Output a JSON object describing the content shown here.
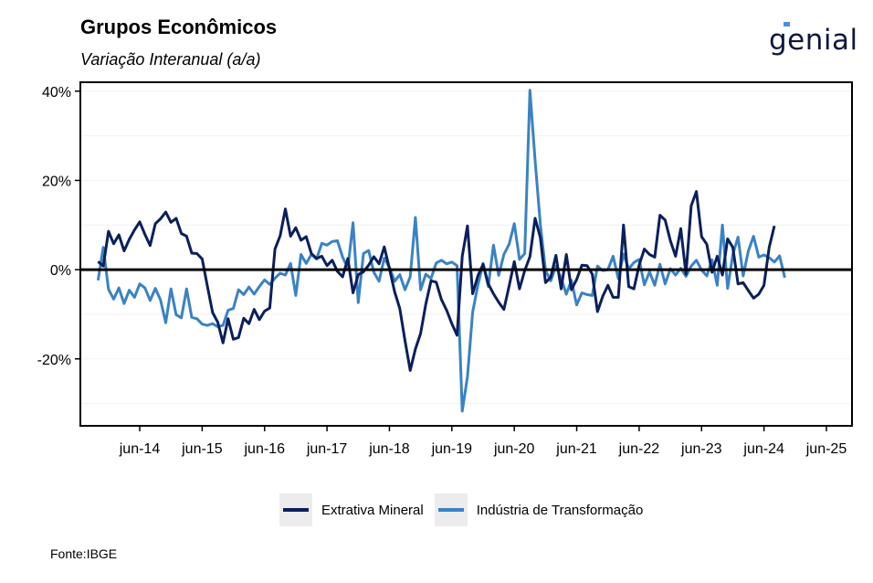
{
  "header": {
    "title": "Grupos Econômicos",
    "subtitle": "Variação Interanual (a/a)"
  },
  "logo": {
    "text": "genial"
  },
  "source": "Fonte:IBGE",
  "chart_data": {
    "type": "line",
    "title": "Grupos Econômicos",
    "subtitle": "Variação Interanual (a/a)",
    "y_unit": "%",
    "ylim": [
      -35,
      42
    ],
    "y_ticks": [
      40,
      20,
      0,
      -20
    ],
    "y_tick_labels": [
      "40%",
      "20%",
      "0%",
      "-20%"
    ],
    "x_tick_labels": [
      "jun-14",
      "jun-15",
      "jun-16",
      "jun-17",
      "jun-18",
      "jun-19",
      "jun-20",
      "jun-21",
      "jun-22",
      "jun-23",
      "jun-24",
      "jun-25"
    ],
    "x_start": "2013-10",
    "x_end": "2024-10",
    "grid": true,
    "zero_line": true,
    "legend_position": "bottom",
    "series": [
      {
        "name": "Extrativa Mineral",
        "color": "#0b1f5c",
        "values": [
          1.8,
          0.8,
          8.6,
          5.8,
          7.8,
          4.2,
          6.8,
          8.9,
          10.7,
          7.9,
          5.4,
          10.3,
          11.4,
          12.9,
          10.6,
          11.5,
          8.1,
          7.5,
          3.7,
          3.6,
          2.4,
          -3.7,
          -9.6,
          -11.8,
          -16.4,
          -11.0,
          -15.6,
          -15.2,
          -10.9,
          -12.1,
          -8.9,
          -11.2,
          -9.3,
          -8.6,
          4.6,
          7.6,
          13.6,
          7.5,
          9.4,
          6.6,
          7.4,
          3.6,
          2.5,
          3.0,
          0.9,
          2.1,
          -0.4,
          -1.6,
          2.5,
          -5.2,
          -1.1,
          -0.5,
          1.0,
          2.9,
          1.3,
          5.1,
          0.2,
          -5.0,
          -8.7,
          -15.9,
          -22.6,
          -17.8,
          -14.3,
          -7.7,
          -2.5,
          -2.8,
          -6.7,
          -9.1,
          -12.1,
          -14.7,
          3.0,
          9.8,
          -5.4,
          -1.4,
          1.2,
          -3.2,
          -5.4,
          -7.3,
          -8.9,
          -3.7,
          1.8,
          -4.3,
          -0.2,
          2.9,
          11.5,
          7.2,
          -2.9,
          -1.7,
          3.2,
          -4.3,
          3.4,
          -4.5,
          -2.2,
          1.0,
          0.9,
          -1.0,
          -9.4,
          -6.0,
          -3.5,
          -6.2,
          -6.2,
          10.0,
          -3.8,
          -4.3,
          1.0,
          4.6,
          3.4,
          2.8,
          12.2,
          11.1,
          6.5,
          3.0,
          9.2,
          -1.0,
          14.3,
          17.5,
          7.4,
          5.7,
          -0.6,
          3.0,
          -1.2,
          6.9,
          5.0,
          -3.2,
          -2.9,
          -4.7,
          -6.4,
          -5.5,
          -3.5,
          5.0,
          9.8
        ]
      },
      {
        "name": "Indústria de Transformação",
        "color": "#3a82c4",
        "values": [
          -2.4,
          5.0,
          -4.4,
          -6.6,
          -4.1,
          -7.6,
          -4.6,
          -6.2,
          -3.2,
          -4.1,
          -6.9,
          -4.2,
          -6.8,
          -11.9,
          -4.3,
          -10.1,
          -10.8,
          -4.3,
          -10.7,
          -11.0,
          -12.2,
          -12.5,
          -12.1,
          -12.8,
          -12.5,
          -9.1,
          -8.7,
          -4.5,
          -5.6,
          -3.9,
          -5.5,
          -3.8,
          -2.3,
          -3.3,
          -1.9,
          -0.8,
          -1.2,
          1.4,
          -5.8,
          3.4,
          1.4,
          3.4,
          2.4,
          5.9,
          5.5,
          6.3,
          6.5,
          2.8,
          0.3,
          10.5,
          -7.4,
          3.6,
          4.3,
          -0.6,
          -2.6,
          2.6,
          0.5,
          -2.6,
          -1.1,
          -4.5,
          -1.6,
          11.7,
          -4.5,
          -1.0,
          -2.0,
          1.5,
          2.1,
          1.3,
          1.7,
          0.9,
          -31.7,
          -24.0,
          -9.5,
          -3.5,
          1.4,
          -3.8,
          5.5,
          -1.3,
          3.4,
          5.7,
          10.3,
          2.3,
          3.6,
          40.2,
          24.4,
          10.2,
          -0.2,
          -2.5,
          0.8,
          -2.0,
          -5.5,
          -2.4,
          -7.9,
          -5.2,
          -5.6,
          -5.8,
          0.8,
          -0.2,
          0.0,
          3.0,
          -2.0,
          3.5,
          0.2,
          1.6,
          2.3,
          -3.4,
          -0.5,
          -3.5,
          1.2,
          -3.2,
          0.2,
          -1.2,
          0.3,
          -1.5,
          0.8,
          2.1,
          -0.1,
          -1.4,
          2.2,
          -3.5,
          10.0,
          -4.2,
          3.4,
          7.3,
          -1.4,
          4.2,
          7.5,
          2.8,
          3.3,
          2.7,
          1.7,
          3.1,
          -1.8
        ]
      }
    ]
  }
}
